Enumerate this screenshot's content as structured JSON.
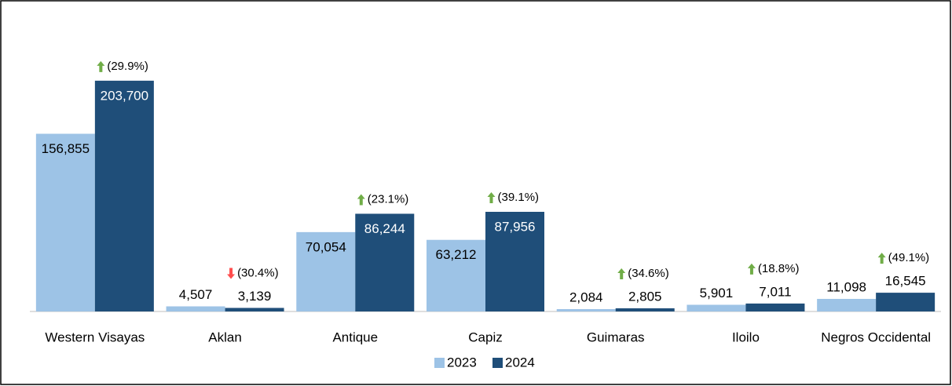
{
  "chart_data": {
    "type": "bar",
    "categories": [
      "Western Visayas",
      "Aklan",
      "Antique",
      "Capiz",
      "Guimaras",
      "Iloilo",
      "Negros Occidental"
    ],
    "series": [
      {
        "name": "2023",
        "color": "#9dc3e6",
        "values": [
          156855,
          4507,
          70054,
          63212,
          2084,
          5901,
          11098
        ],
        "value_labels": [
          "156,855",
          "4,507",
          "70,054",
          "63,212",
          "2,084",
          "5,901",
          "11,098"
        ]
      },
      {
        "name": "2024",
        "color": "#1f4e79",
        "values": [
          203700,
          3139,
          86244,
          87956,
          2805,
          7011,
          16545
        ],
        "value_labels": [
          "203,700",
          "3,139",
          "86,244",
          "87,956",
          "2,805",
          "7,011",
          "16,545"
        ]
      }
    ],
    "changes": [
      {
        "value": 29.9,
        "label": "(29.9%)"
      },
      {
        "value": -30.4,
        "label": "(30.4%)"
      },
      {
        "value": 23.1,
        "label": "(23.1%)"
      },
      {
        "value": 39.1,
        "label": "(39.1%)"
      },
      {
        "value": 34.6,
        "label": "(34.6%)"
      },
      {
        "value": 18.8,
        "label": "(18.8%)"
      },
      {
        "value": 49.1,
        "label": "(49.1%)"
      }
    ],
    "up_color": "#70ad47",
    "down_color": "#ff4d4d",
    "ylim": [
      0,
      250000
    ],
    "legend": "bottom"
  }
}
